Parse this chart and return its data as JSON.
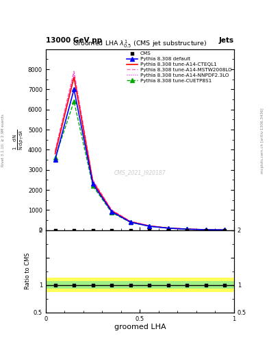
{
  "title": "Groomed LHA $\\lambda^{1}_{0.5}$ (CMS jet substructure)",
  "header_left": "13000 GeV pp",
  "header_right": "Jets",
  "xlabel": "groomed LHA",
  "ylabel_ratio": "Ratio to CMS",
  "watermark": "CMS_2021_I920187",
  "sidebar_right": "mcplots.cern.ch [arXiv:1306.3436]",
  "sidebar_left": "Rivet 3.1.10, ≥ 2.9M events",
  "x_data": [
    0.05,
    0.15,
    0.25,
    0.35,
    0.45,
    0.55,
    0.65,
    0.75,
    0.85,
    0.95
  ],
  "pythia_default_y": [
    3500,
    7000,
    2300,
    920,
    395,
    195,
    98,
    48,
    20,
    10
  ],
  "pythia_cteq_y": [
    3800,
    7600,
    2400,
    955,
    415,
    207,
    103,
    52,
    21,
    10
  ],
  "pythia_mstw_y": [
    3950,
    7900,
    2500,
    1005,
    440,
    220,
    110,
    55,
    22,
    11
  ],
  "pythia_nnpdf_y": [
    3900,
    7800,
    2460,
    990,
    435,
    218,
    108,
    54,
    21,
    10
  ],
  "pythia_cuetp_y": [
    3600,
    6400,
    2200,
    875,
    385,
    192,
    96,
    47,
    19,
    9
  ],
  "color_cms": "black",
  "color_default": "blue",
  "color_cteql1": "red",
  "color_mstw": "#ff69b4",
  "color_nnpdf": "#ff00ff",
  "color_cuetp": "#00aa00",
  "ylim_main": [
    0,
    9000
  ],
  "ylim_ratio": [
    0.5,
    2.0
  ],
  "xlim": [
    0.0,
    1.0
  ],
  "yticks_main": [
    0,
    1000,
    2000,
    3000,
    4000,
    5000,
    6000,
    7000,
    8000
  ],
  "ytick_labels_main": [
    "0",
    "1000",
    "2000",
    "3000",
    "4000",
    "5000",
    "6000",
    "7000",
    "8000"
  ]
}
